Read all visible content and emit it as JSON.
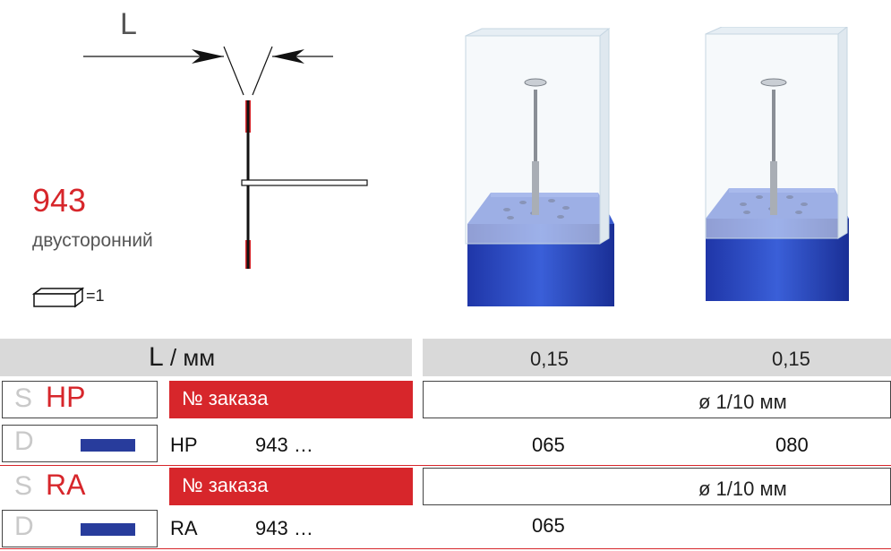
{
  "diagram": {
    "dimension_letter": "L",
    "model_number": "943",
    "model_type": "двусторонний",
    "pack_quantity": "=1"
  },
  "table": {
    "header_label": "L",
    "header_unit": " / мм",
    "column_values": [
      "0,15",
      "0,15"
    ],
    "sections": [
      {
        "s_letter": "S",
        "code": "HP",
        "order_label": "№ заказа",
        "diameter_label": "ø 1/10 мм",
        "d_letter": "D",
        "shank": "HP",
        "order_prefix": "943 …",
        "sizes": [
          "065",
          "080"
        ]
      },
      {
        "s_letter": "S",
        "code": "RA",
        "order_label": "№ заказа",
        "diameter_label": "ø 1/10 мм",
        "d_letter": "D",
        "shank": "RA",
        "order_prefix": "943 …",
        "sizes": [
          "065",
          ""
        ]
      }
    ]
  },
  "colors": {
    "accent_red": "#d7262b",
    "header_gray": "#d9d9d9",
    "shank_blue": "#283c9c",
    "box_blue": "#2f4fc4"
  }
}
